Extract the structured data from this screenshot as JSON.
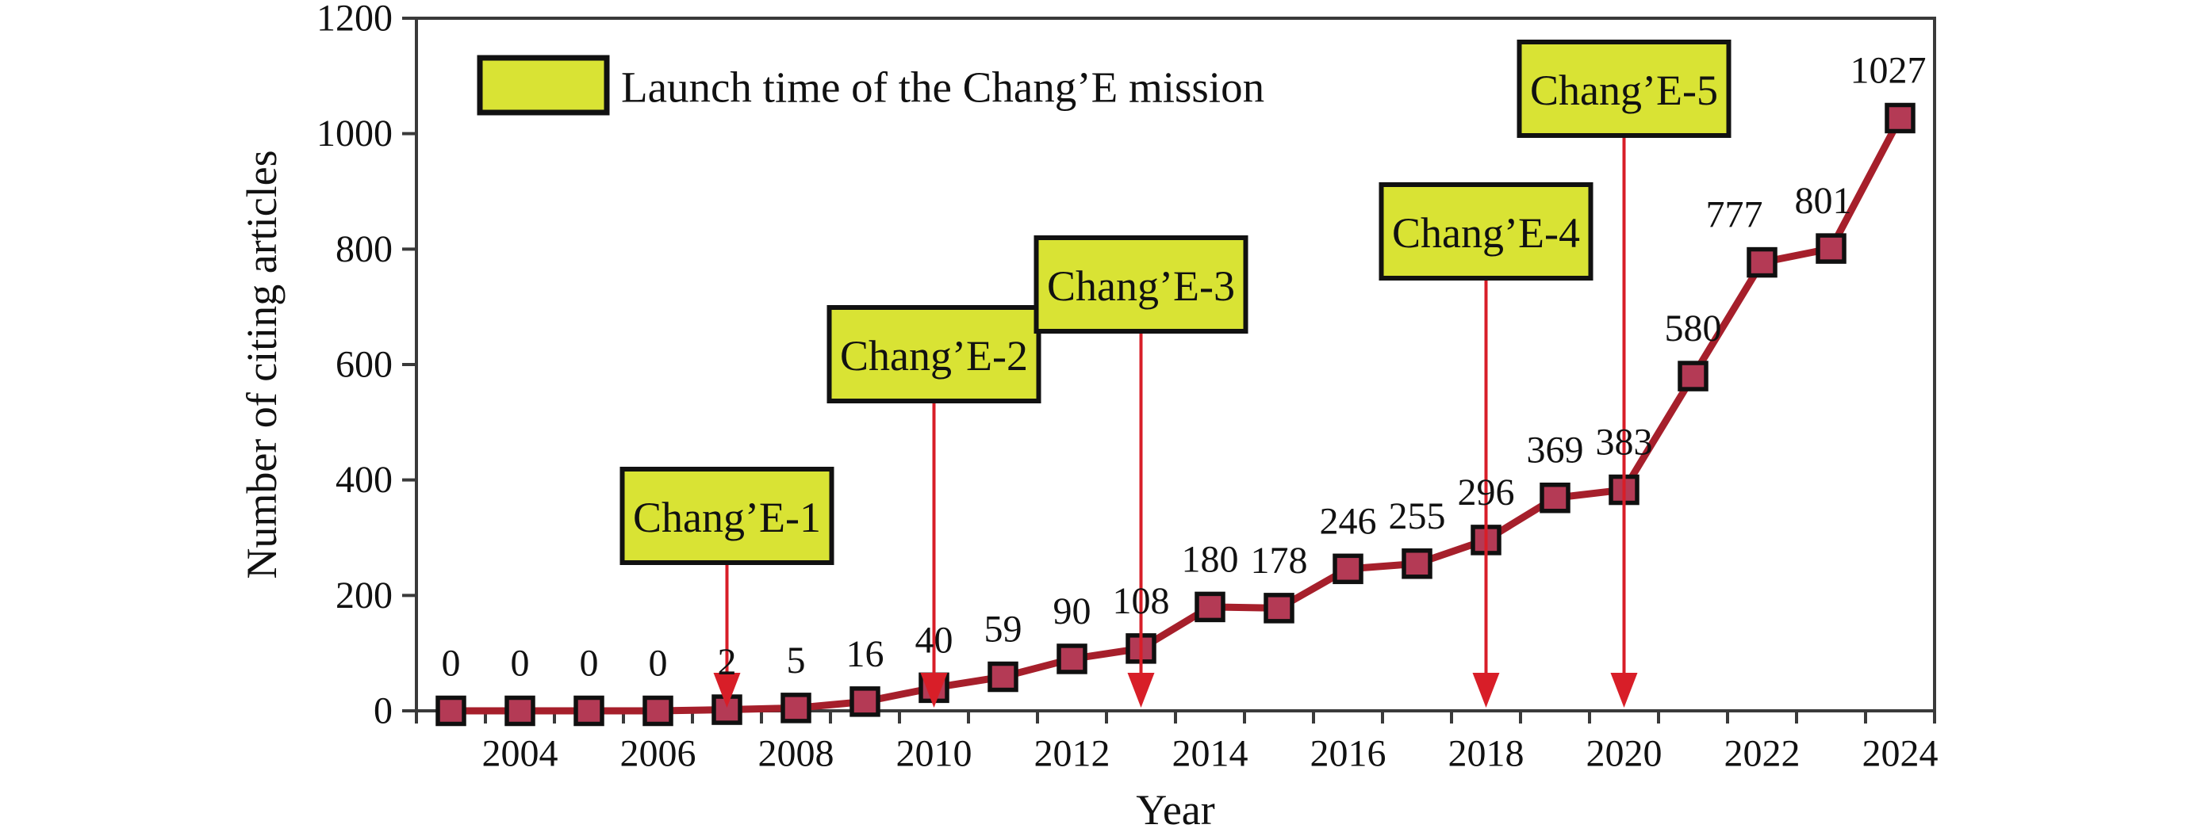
{
  "chart_data": {
    "type": "line",
    "title": "",
    "xlabel": "Year",
    "ylabel": "Number of citing articles",
    "x": [
      2003,
      2004,
      2005,
      2006,
      2007,
      2008,
      2009,
      2010,
      2011,
      2012,
      2013,
      2014,
      2015,
      2016,
      2017,
      2018,
      2019,
      2020,
      2021,
      2022,
      2023,
      2024
    ],
    "values": [
      0,
      0,
      0,
      0,
      2,
      5,
      16,
      40,
      59,
      90,
      108,
      180,
      178,
      246,
      255,
      296,
      369,
      383,
      580,
      777,
      801,
      1027
    ],
    "point_labels": [
      "0",
      "0",
      "0",
      "0",
      "2",
      "5",
      "16",
      "40",
      "59",
      "90",
      "108",
      "180",
      "178",
      "246",
      "255",
      "296",
      "369",
      "383",
      "580",
      "777",
      "801",
      "1027"
    ],
    "ylim": [
      0,
      1200
    ],
    "yticks": [
      0,
      200,
      400,
      600,
      800,
      1000,
      1200
    ],
    "xtick_labels": [
      2004,
      2006,
      2008,
      2010,
      2012,
      2014,
      2016,
      2018,
      2020,
      2022,
      2024
    ],
    "grid": "off",
    "legend": {
      "position": "top-left-inside",
      "label": "Launch time of the Chang’E mission"
    },
    "annotations": [
      {
        "label": "Chang’E-1",
        "year": 2007,
        "box_top": 592
      },
      {
        "label": "Chang’E-2",
        "year": 2010,
        "box_top": 388
      },
      {
        "label": "Chang’E-3",
        "year": 2013,
        "box_top": 300
      },
      {
        "label": "Chang’E-4",
        "year": 2018,
        "box_top": 233
      },
      {
        "label": "Chang’E-5",
        "year": 2020,
        "box_top": 53
      }
    ],
    "label_dx": {
      "2022": -35,
      "2023": -10,
      "2024": -15
    },
    "colors": {
      "line": "#a61f2b",
      "marker_fill": "#b43a55",
      "marker_border": "#101010",
      "arrow": "#d81e28",
      "callout_fill": "#d9e334",
      "callout_border": "#111111",
      "axis": "#3a3a3a",
      "text": "#111111",
      "background": "#ffffff"
    }
  }
}
